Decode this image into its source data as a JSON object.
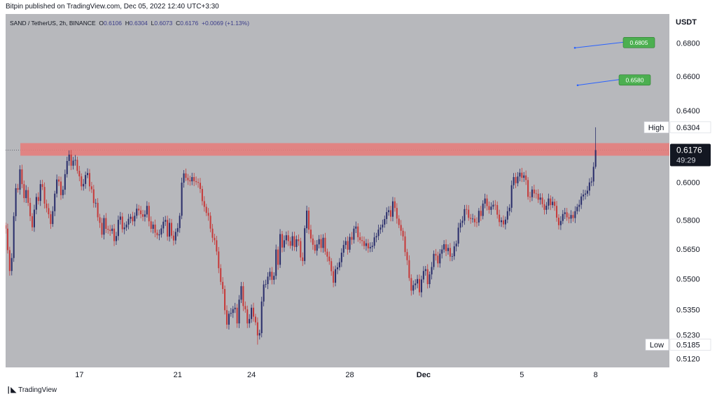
{
  "header": {
    "published_text": "Bitpin published on TradingView.com, Dec 05, 2022 12:40 UTC+3:30"
  },
  "legend": {
    "symbol": "SAND / TetherUS, 2h, BINANCE",
    "open_label": "O",
    "open": "0.6106",
    "high_label": "H",
    "high": "0.6304",
    "low_label": "L",
    "low": "0.6073",
    "close_label": "C",
    "close": "0.6176",
    "change": "+0.0069 (+1.13%)"
  },
  "axis": {
    "unit": "USDT"
  },
  "price_tags": {
    "high_label": "High",
    "high_value": "0.6304",
    "low_label": "Low",
    "low_value": "0.5185",
    "last_price": "0.6176",
    "countdown": "49:29"
  },
  "targets": [
    {
      "label": "0.6805",
      "price": 0.6805
    },
    {
      "label": "0.6580",
      "price": 0.658
    }
  ],
  "footer": {
    "brand": "TradingView"
  },
  "colors": {
    "up": "#2a2e6b",
    "down": "#c63b3b",
    "zone": "#e87a79",
    "target": "#4caf50",
    "bg": "#b7b8bc",
    "line": "#2962ff"
  },
  "chart_data": {
    "type": "candlestick",
    "symbol": "SAND / TetherUS",
    "interval": "2h",
    "y_scale": "log",
    "ylim": [
      0.508,
      0.698
    ],
    "y_ticks": [
      0.512,
      0.523,
      0.535,
      0.55,
      0.565,
      0.58,
      0.6,
      0.62,
      0.64,
      0.66,
      0.68,
      0.69
    ],
    "y_tick_labels": [
      "0.5120",
      "0.5230",
      "0.5350",
      "0.5500",
      "0.5650",
      "0.5800",
      "0.6000",
      "",
      "0.6400",
      "0.6600",
      "0.6800",
      ""
    ],
    "x_ticks": [
      "17",
      "21",
      "24",
      "28",
      "Dec",
      "5",
      "8"
    ],
    "x_tick_days": [
      17,
      21,
      24,
      28,
      31,
      35,
      38
    ],
    "x_domain_days": [
      14.0,
      41.0
    ],
    "candles_start_day": 14.0,
    "candle_step_days": 0.08333,
    "resistance_zone": [
      0.6145,
      0.6215
    ],
    "last_price": 0.6176,
    "high": 0.6304,
    "low": 0.5185,
    "closes": [
      0.5755,
      0.5645,
      0.554,
      0.5605,
      0.582,
      0.5968,
      0.596,
      0.607,
      0.599,
      0.5915,
      0.5958,
      0.589,
      0.582,
      0.5762,
      0.5854,
      0.5921,
      0.59,
      0.599,
      0.5975,
      0.5886,
      0.5862,
      0.583,
      0.5779,
      0.5846,
      0.5939,
      0.6015,
      0.6004,
      0.5931,
      0.596,
      0.6044,
      0.6116,
      0.6151,
      0.609,
      0.6118,
      0.6122,
      0.6062,
      0.6032,
      0.5978,
      0.5991,
      0.6039,
      0.605,
      0.5978,
      0.5962,
      0.5889,
      0.589,
      0.5814,
      0.5785,
      0.5724,
      0.581,
      0.5754,
      0.5749,
      0.5743,
      0.5755,
      0.5691,
      0.5717,
      0.5801,
      0.5818,
      0.5752,
      0.5761,
      0.5776,
      0.5806,
      0.5817,
      0.5793,
      0.5822,
      0.5859,
      0.585,
      0.583,
      0.5817,
      0.5829,
      0.5874,
      0.5793,
      0.5754,
      0.5776,
      0.5734,
      0.5721,
      0.5725,
      0.5756,
      0.5791,
      0.58,
      0.5714,
      0.5785,
      0.5719,
      0.5694,
      0.5738,
      0.5758,
      0.5822,
      0.5998,
      0.6048,
      0.6024,
      0.6011,
      0.6005,
      0.6028,
      0.6006,
      0.6001,
      0.5997,
      0.5964,
      0.5899,
      0.5869,
      0.5837,
      0.5822,
      0.5755,
      0.5708,
      0.5695,
      0.5638,
      0.5554,
      0.5486,
      0.5451,
      0.5348,
      0.5279,
      0.5331,
      0.5335,
      0.5353,
      0.536,
      0.5285,
      0.5399,
      0.5465,
      0.5368,
      0.5352,
      0.5285,
      0.5306,
      0.536,
      0.5317,
      0.529,
      0.5228,
      0.5239,
      0.539,
      0.5473,
      0.5475,
      0.5512,
      0.5536,
      0.5496,
      0.5516,
      0.5648,
      0.5571,
      0.5727,
      0.5658,
      0.5695,
      0.5721,
      0.5691,
      0.5667,
      0.5716,
      0.5661,
      0.57,
      0.5691,
      0.5608,
      0.559,
      0.5757,
      0.5849,
      0.575,
      0.5704,
      0.5672,
      0.5642,
      0.5674,
      0.5701,
      0.5656,
      0.5708,
      0.5637,
      0.5612,
      0.5589,
      0.5539,
      0.5482,
      0.5549,
      0.5558,
      0.5584,
      0.5632,
      0.5671,
      0.5691,
      0.5647,
      0.5712,
      0.5698,
      0.5755,
      0.5766,
      0.5711,
      0.5696,
      0.5691,
      0.5666,
      0.568,
      0.5654,
      0.5661,
      0.5667,
      0.571,
      0.5717,
      0.575,
      0.5761,
      0.5776,
      0.5805,
      0.5841,
      0.5851,
      0.5817,
      0.5898,
      0.5863,
      0.5807,
      0.5774,
      0.5744,
      0.5715,
      0.5635,
      0.5594,
      0.5505,
      0.5443,
      0.547,
      0.5478,
      0.55,
      0.5435,
      0.5498,
      0.554,
      0.5549,
      0.5475,
      0.5523,
      0.556,
      0.5626,
      0.5617,
      0.5578,
      0.5627,
      0.5648,
      0.5675,
      0.564,
      0.5656,
      0.5612,
      0.5614,
      0.5664,
      0.5678,
      0.576,
      0.5785,
      0.5796,
      0.5857,
      0.5854,
      0.5811,
      0.5806,
      0.5807,
      0.5788,
      0.5787,
      0.5848,
      0.5821,
      0.5886,
      0.5913,
      0.5873,
      0.5853,
      0.587,
      0.588,
      0.5878,
      0.5828,
      0.5789,
      0.5798,
      0.5777,
      0.5802,
      0.5846,
      0.5864,
      0.5984,
      0.6028,
      0.5995,
      0.6031,
      0.6052,
      0.6024,
      0.6037,
      0.6012,
      0.5922,
      0.592,
      0.5961,
      0.594,
      0.5938,
      0.5907,
      0.5918,
      0.5883,
      0.5853,
      0.5875,
      0.5913,
      0.5878,
      0.5896,
      0.5874,
      0.5812,
      0.5773,
      0.5795,
      0.5831,
      0.584,
      0.5814,
      0.5807,
      0.5826,
      0.581,
      0.5846,
      0.5869,
      0.588,
      0.5924,
      0.5934,
      0.5939,
      0.5955,
      0.5999,
      0.6004,
      0.6084,
      0.6176
    ]
  }
}
